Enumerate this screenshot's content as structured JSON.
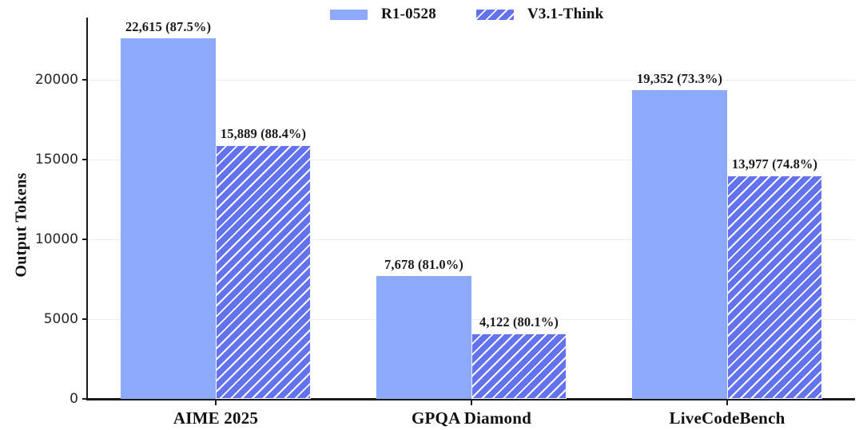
{
  "chart_data": {
    "type": "bar",
    "title": "",
    "ylabel": "Output Tokens",
    "xlabel": "",
    "categories": [
      "AIME 2025",
      "GPQA Diamond",
      "LiveCodeBench"
    ],
    "series": [
      {
        "name": "R1-0528",
        "style": "solid",
        "values": [
          22615,
          7678,
          19352
        ],
        "labels": [
          "22,615 (87.5%)",
          "7,678 (81.0%)",
          "19,352 (73.3%)"
        ]
      },
      {
        "name": "V3.1-Think",
        "style": "hatched",
        "values": [
          15889,
          4122,
          13977
        ],
        "labels": [
          "15,889 (88.4%)",
          "4,122 (80.1%)",
          "13,977 (74.8%)"
        ]
      }
    ],
    "yticks": [
      0,
      5000,
      10000,
      15000,
      20000
    ],
    "ylim": [
      0,
      23900
    ],
    "grid": true,
    "legend_position": "top-center"
  },
  "colors": {
    "bar_solid": "#8DA9FB",
    "bar_hatched_fill": "#6373ED",
    "hatch_line": "#FFFFFF",
    "gridline": "#ECECEC",
    "axis": "#1A1A1A",
    "text": "#111111"
  }
}
